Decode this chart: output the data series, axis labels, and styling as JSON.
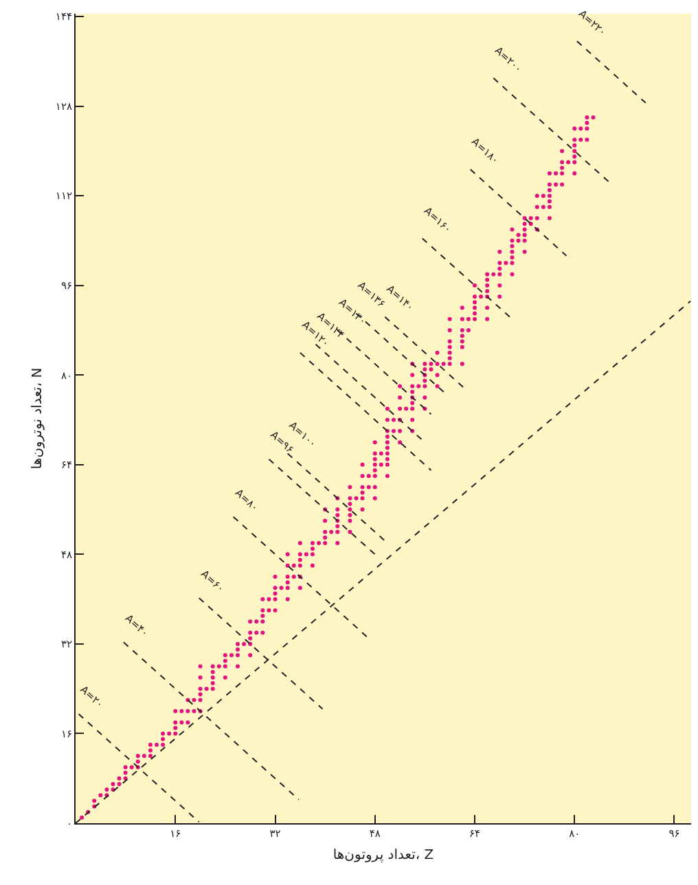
{
  "chart_data": {
    "type": "scatter",
    "xlabel": "تعداد پروتون‌ها، Z",
    "ylabel": "تعداد نوترون‌ها، N",
    "xlim": [
      0,
      98.7
    ],
    "ylim": [
      0,
      144.5
    ],
    "xticks": [
      {
        "value": 16,
        "label": "۱۶"
      },
      {
        "value": 32,
        "label": "۳۲"
      },
      {
        "value": 48,
        "label": "۴۸"
      },
      {
        "value": 64,
        "label": "۶۴"
      },
      {
        "value": 80,
        "label": "۸۰"
      },
      {
        "value": 96,
        "label": "۹۶"
      }
    ],
    "yticks": [
      {
        "value": 0,
        "label": "۰"
      },
      {
        "value": 16,
        "label": "۱۶"
      },
      {
        "value": 32,
        "label": "۳۲"
      },
      {
        "value": 48,
        "label": "۴۸"
      },
      {
        "value": 64,
        "label": "۶۴"
      },
      {
        "value": 80,
        "label": "۸۰"
      },
      {
        "value": 96,
        "label": "۹۶"
      },
      {
        "value": 112,
        "label": "۱۱۲"
      },
      {
        "value": 128,
        "label": "۱۲۸"
      },
      {
        "value": 144,
        "label": "۱۴۴"
      }
    ],
    "marker": "circle",
    "grid": false,
    "legend": false,
    "series": [
      {
        "color": "#e2127f",
        "x": [
          1,
          2,
          3,
          3,
          4,
          5,
          5,
          6,
          6,
          7,
          7,
          8,
          8,
          8,
          9,
          10,
          10,
          10,
          11,
          12,
          12,
          12,
          13,
          14,
          14,
          14,
          15,
          16,
          16,
          16,
          16,
          17,
          17,
          18,
          18,
          18,
          19,
          19,
          20,
          20,
          20,
          20,
          20,
          20,
          21,
          22,
          22,
          22,
          22,
          22,
          23,
          24,
          24,
          24,
          24,
          25,
          26,
          26,
          26,
          26,
          27,
          28,
          28,
          28,
          28,
          28,
          29,
          29,
          30,
          30,
          30,
          30,
          30,
          31,
          31,
          32,
          32,
          32,
          32,
          32,
          33,
          34,
          34,
          34,
          34,
          34,
          34,
          35,
          35,
          36,
          36,
          36,
          36,
          36,
          36,
          37,
          38,
          38,
          38,
          38,
          39,
          40,
          40,
          40,
          40,
          40,
          41,
          42,
          42,
          42,
          42,
          42,
          42,
          42,
          44,
          44,
          44,
          44,
          44,
          44,
          44,
          45,
          46,
          46,
          46,
          46,
          46,
          46,
          47,
          47,
          48,
          48,
          48,
          48,
          48,
          48,
          48,
          48,
          49,
          49,
          50,
          50,
          50,
          50,
          50,
          50,
          50,
          50,
          50,
          50,
          51,
          51,
          52,
          52,
          52,
          52,
          52,
          52,
          53,
          54,
          54,
          54,
          54,
          54,
          54,
          54,
          54,
          54,
          55,
          56,
          56,
          56,
          56,
          56,
          56,
          56,
          57,
          57,
          58,
          58,
          58,
          58,
          59,
          60,
          60,
          60,
          60,
          60,
          60,
          60,
          62,
          62,
          62,
          62,
          62,
          62,
          62,
          63,
          63,
          64,
          64,
          64,
          64,
          64,
          64,
          65,
          66,
          66,
          66,
          66,
          66,
          66,
          66,
          67,
          68,
          68,
          68,
          68,
          68,
          68,
          69,
          70,
          70,
          70,
          70,
          70,
          70,
          70,
          71,
          71,
          72,
          72,
          72,
          72,
          72,
          72,
          73,
          73,
          74,
          74,
          74,
          74,
          75,
          75,
          76,
          76,
          76,
          76,
          76,
          76,
          76,
          77,
          77,
          78,
          78,
          78,
          78,
          78,
          79,
          80,
          80,
          80,
          80,
          80,
          80,
          80,
          81,
          81,
          82,
          82,
          82,
          82,
          83
        ],
        "values": [
          1,
          2,
          3,
          4,
          5,
          5,
          6,
          6,
          7,
          7,
          8,
          8,
          9,
          10,
          10,
          10,
          11,
          12,
          12,
          12,
          13,
          14,
          14,
          14,
          15,
          16,
          16,
          16,
          17,
          18,
          20,
          18,
          20,
          18,
          20,
          22,
          20,
          22,
          20,
          22,
          23,
          24,
          26,
          28,
          24,
          24,
          25,
          26,
          27,
          28,
          28,
          26,
          28,
          29,
          30,
          30,
          28,
          30,
          31,
          32,
          32,
          30,
          32,
          33,
          34,
          36,
          34,
          36,
          34,
          36,
          37,
          38,
          40,
          38,
          40,
          38,
          40,
          41,
          42,
          44,
          42,
          40,
          42,
          43,
          44,
          46,
          48,
          44,
          46,
          42,
          44,
          46,
          47,
          48,
          50,
          48,
          46,
          48,
          49,
          50,
          50,
          50,
          51,
          52,
          54,
          56,
          52,
          50,
          52,
          53,
          54,
          55,
          56,
          58,
          52,
          54,
          55,
          56,
          57,
          58,
          60,
          58,
          56,
          58,
          59,
          60,
          62,
          64,
          60,
          62,
          58,
          60,
          62,
          63,
          64,
          65,
          66,
          68,
          64,
          66,
          62,
          64,
          65,
          66,
          67,
          68,
          69,
          70,
          72,
          74,
          70,
          72,
          68,
          70,
          72,
          74,
          76,
          78,
          74,
          70,
          72,
          74,
          75,
          76,
          77,
          78,
          80,
          82,
          78,
          74,
          76,
          78,
          79,
          80,
          81,
          82,
          81,
          82,
          78,
          80,
          82,
          84,
          82,
          82,
          83,
          84,
          85,
          86,
          88,
          90,
          82,
          85,
          86,
          87,
          88,
          90,
          92,
          88,
          90,
          90,
          91,
          92,
          93,
          94,
          96,
          94,
          90,
          92,
          94,
          95,
          96,
          97,
          98,
          98,
          94,
          96,
          98,
          99,
          100,
          102,
          100,
          98,
          100,
          101,
          102,
          103,
          104,
          106,
          104,
          105,
          102,
          104,
          105,
          106,
          107,
          108,
          107,
          108,
          106,
          108,
          110,
          112,
          110,
          112,
          108,
          110,
          111,
          112,
          113,
          114,
          116,
          114,
          116,
          114,
          116,
          117,
          118,
          120,
          118,
          116,
          118,
          119,
          120,
          121,
          122,
          124,
          122,
          124,
          122,
          124,
          125,
          126,
          126
        ]
      },
      {
        "type": "line",
        "line_style": "dashed",
        "marker": "none",
        "color": "#231f20",
        "x": [
          0,
          98.6
        ],
        "values": [
          0,
          93.2
        ]
      },
      {
        "type": "line",
        "name": "A=۲۰",
        "line_style": "dashed",
        "marker": "none",
        "color": "#231f20",
        "x": [
          0.5,
          19.8
        ],
        "values": [
          19.5,
          0.2
        ]
      },
      {
        "type": "line",
        "name": "A=۴۰",
        "line_style": "dashed",
        "marker": "none",
        "color": "#231f20",
        "x": [
          7.7,
          35.8
        ],
        "values": [
          32.3,
          4.2
        ]
      },
      {
        "type": "line",
        "name": "A=۶۰",
        "line_style": "dashed",
        "marker": "none",
        "color": "#231f20",
        "x": [
          19.8,
          39.6
        ],
        "values": [
          40.2,
          20.4
        ]
      },
      {
        "type": "line",
        "name": "A=۸۰",
        "line_style": "dashed",
        "marker": "none",
        "color": "#231f20",
        "x": [
          25.3,
          47.1
        ],
        "values": [
          54.7,
          32.9
        ]
      },
      {
        "type": "line",
        "name": "A=۹۶",
        "line_style": "dashed",
        "marker": "none",
        "color": "#231f20",
        "x": [
          31,
          48
        ],
        "values": [
          65,
          48
        ]
      },
      {
        "type": "line",
        "name": "A=۱۰۰",
        "line_style": "dashed",
        "marker": "none",
        "color": "#231f20",
        "x": [
          34,
          49.5
        ],
        "values": [
          66,
          50.5
        ]
      },
      {
        "type": "line",
        "name": "A=۱۲۰",
        "line_style": "dashed",
        "marker": "none",
        "color": "#231f20",
        "x": [
          36,
          57
        ],
        "values": [
          84,
          63
        ]
      },
      {
        "type": "line",
        "name": "A=۱۲۴",
        "line_style": "dashed",
        "marker": "none",
        "color": "#231f20",
        "x": [
          38.5,
          56
        ],
        "values": [
          85.5,
          68
        ]
      },
      {
        "type": "line",
        "name": "A=۱۳۰",
        "line_style": "dashed",
        "marker": "none",
        "color": "#231f20",
        "x": [
          42,
          57
        ],
        "values": [
          88,
          73
        ]
      },
      {
        "type": "line",
        "name": "A=۱۳۶",
        "line_style": "dashed",
        "marker": "none",
        "color": "#231f20",
        "x": [
          45,
          59.5
        ],
        "values": [
          91,
          76.5
        ]
      },
      {
        "type": "line",
        "name": "A=۱۴۰",
        "line_style": "dashed",
        "marker": "none",
        "color": "#231f20",
        "x": [
          49.6,
          62.2
        ],
        "values": [
          90.4,
          77.8
        ]
      },
      {
        "type": "line",
        "name": "A=۱۶۰",
        "line_style": "dashed",
        "marker": "none",
        "color": "#231f20",
        "x": [
          55.6,
          69.9
        ],
        "values": [
          104.4,
          90.1
        ]
      },
      {
        "type": "line",
        "name": "A=۱۸۰",
        "line_style": "dashed",
        "marker": "none",
        "color": "#231f20",
        "x": [
          63.3,
          78.7
        ],
        "values": [
          116.7,
          101.3
        ]
      },
      {
        "type": "line",
        "name": "A=۲۰۰",
        "line_style": "dashed",
        "marker": "none",
        "color": "#231f20",
        "x": [
          67,
          86
        ],
        "values": [
          133,
          114
        ]
      },
      {
        "type": "line",
        "name": "A=۲۲۰",
        "line_style": "dashed",
        "marker": "none",
        "color": "#231f20",
        "x": [
          80.4,
          91.4
        ],
        "values": [
          139.6,
          128.6
        ]
      }
    ]
  }
}
